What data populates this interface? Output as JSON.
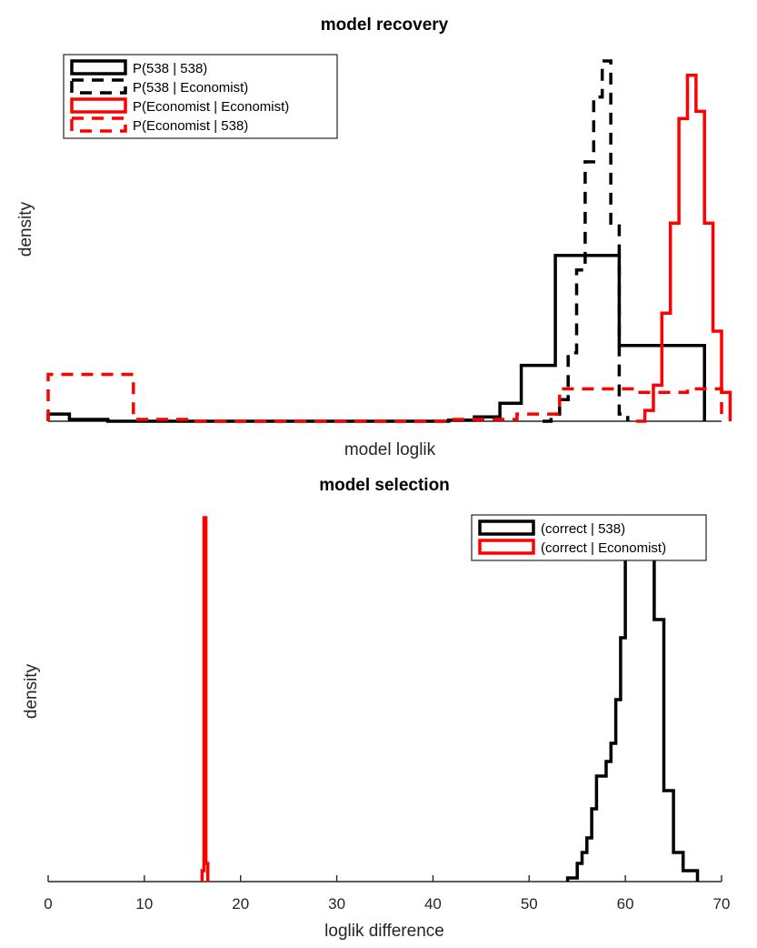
{
  "chart_data": [
    {
      "type": "histogram",
      "title": "model recovery",
      "xlabel": "model loglik",
      "ylabel": "density",
      "x_ticks_visible": false,
      "y_ticks_visible": false,
      "legend_position": "top-left",
      "series": [
        {
          "name": "P(538 | 538)",
          "color": "#000000",
          "linestyle": "solid",
          "steps": [
            [
              3,
              0.02
            ],
            [
              5.5,
              0.005
            ],
            [
              10,
              0.0
            ],
            [
              50,
              0.003
            ],
            [
              53,
              0.012
            ],
            [
              56,
              0.05
            ],
            [
              58.5,
              0.155
            ],
            [
              62.5,
              0.46
            ],
            [
              67.5,
              0.46
            ],
            [
              70,
              0.21
            ],
            [
              75,
              0.21
            ],
            [
              80,
              0.0
            ]
          ]
        },
        {
          "name": "P(538 | Economist)",
          "color": "#000000",
          "linestyle": "dashed",
          "steps": [
            [
              61,
              0.0
            ],
            [
              62,
              0.02
            ],
            [
              63,
              0.06
            ],
            [
              64,
              0.19
            ],
            [
              65,
              0.42
            ],
            [
              66,
              0.72
            ],
            [
              67,
              0.9
            ],
            [
              68,
              1.0
            ],
            [
              69,
              0.55
            ],
            [
              70,
              0.02
            ],
            [
              71,
              0.0
            ]
          ]
        },
        {
          "name": "P(Economist | Economist)",
          "color": "#ff0000",
          "linestyle": "solid",
          "steps": [
            [
              72,
              0.0
            ],
            [
              73,
              0.03
            ],
            [
              74,
              0.1
            ],
            [
              75,
              0.3
            ],
            [
              76,
              0.55
            ],
            [
              77,
              0.84
            ],
            [
              78,
              0.96
            ],
            [
              79,
              0.86
            ],
            [
              80,
              0.55
            ],
            [
              81,
              0.25
            ],
            [
              82,
              0.08
            ],
            [
              83,
              0.0
            ]
          ]
        },
        {
          "name": "P(Economist | 538)",
          "color": "#ff0000",
          "linestyle": "dashed",
          "steps": [
            [
              3,
              0.13
            ],
            [
              13,
              0.005
            ],
            [
              20,
              0.0
            ],
            [
              50,
              0.005
            ],
            [
              58,
              0.02
            ],
            [
              63,
              0.09
            ],
            [
              72,
              0.08
            ],
            [
              78,
              0.09
            ],
            [
              82,
              0.0
            ]
          ]
        }
      ]
    },
    {
      "type": "histogram",
      "title": "model selection",
      "xlabel": "loglik difference",
      "ylabel": "density",
      "xlim": [
        0,
        70
      ],
      "x_ticks": [
        0,
        10,
        20,
        30,
        40,
        50,
        60,
        70
      ],
      "y_ticks_visible": false,
      "legend_position": "top-right",
      "series": [
        {
          "name": "(correct | 538)",
          "color": "#000000",
          "linestyle": "solid",
          "steps": [
            [
              54,
              0.01
            ],
            [
              55,
              0.05
            ],
            [
              55.5,
              0.08
            ],
            [
              56,
              0.12
            ],
            [
              56.5,
              0.2
            ],
            [
              57,
              0.29
            ],
            [
              58,
              0.33
            ],
            [
              58.5,
              0.38
            ],
            [
              59,
              0.5
            ],
            [
              59.5,
              0.67
            ],
            [
              60,
              0.9
            ],
            [
              61,
              0.97
            ],
            [
              62,
              0.93
            ],
            [
              63,
              0.72
            ],
            [
              64,
              0.25
            ],
            [
              65,
              0.08
            ],
            [
              66,
              0.03
            ],
            [
              67.5,
              0.0
            ]
          ]
        },
        {
          "name": "(correct | Economist)",
          "color": "#ff0000",
          "linestyle": "solid",
          "steps": [
            [
              16,
              0.03
            ],
            [
              16.2,
              1.0
            ],
            [
              16.4,
              0.05
            ],
            [
              16.6,
              0.0
            ]
          ]
        }
      ]
    }
  ]
}
